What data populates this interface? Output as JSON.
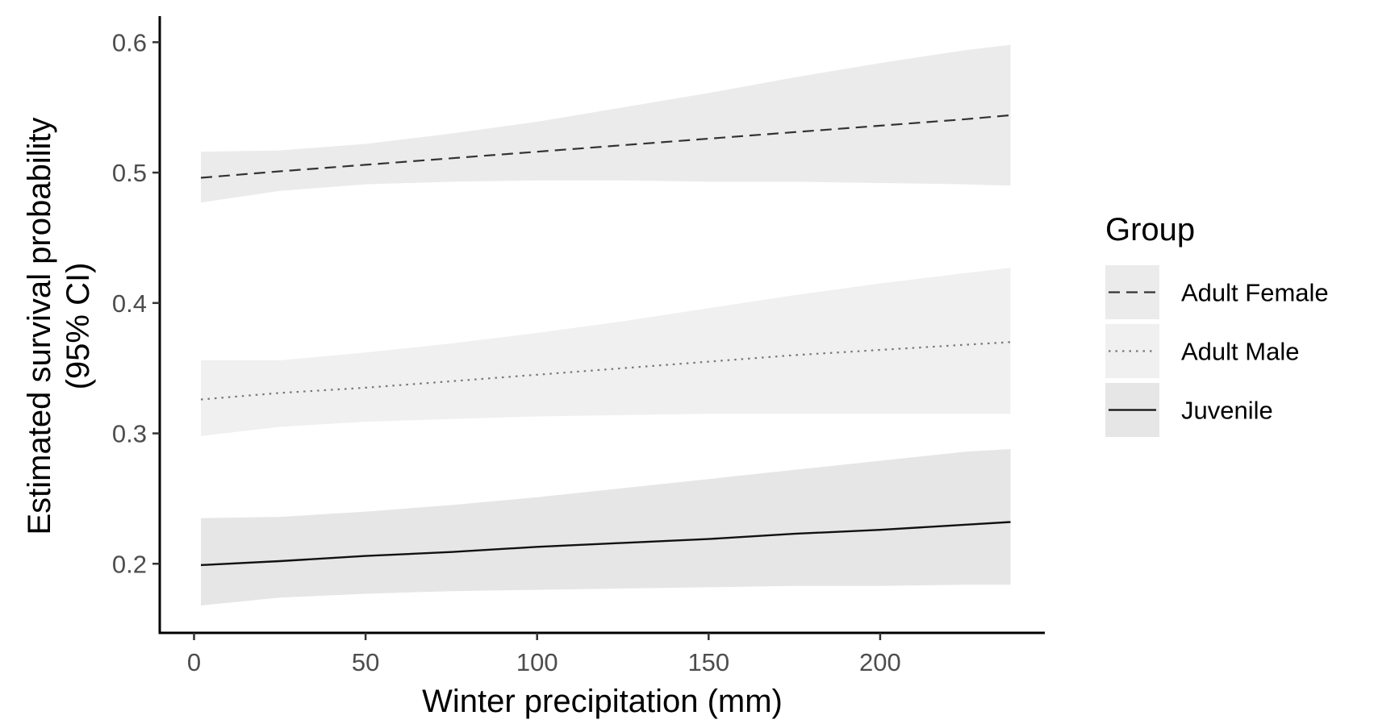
{
  "chart_data": {
    "type": "line",
    "xlabel": "Winter precipitation (mm)",
    "ylabel_lines": [
      "Estimated survival probability",
      "(95% CI)"
    ],
    "xlim": [
      -10,
      248
    ],
    "ylim": [
      0.147,
      0.62
    ],
    "x_ticks": [
      0,
      50,
      100,
      150,
      200
    ],
    "y_ticks": [
      0.2,
      0.3,
      0.4,
      0.5,
      0.6
    ],
    "x_tick_labels": [
      "0",
      "50",
      "100",
      "150",
      "200"
    ],
    "y_tick_labels": [
      "0.2",
      "0.3",
      "0.4",
      "0.5",
      "0.6"
    ],
    "grid": false,
    "legend": {
      "title": "Group",
      "position": "right"
    },
    "x": [
      2,
      25,
      50,
      75,
      100,
      125,
      150,
      175,
      200,
      225,
      238
    ],
    "series": [
      {
        "name": "Adult Female",
        "line_style": "dashed",
        "line_color": "#333333",
        "ribbon_color": "#ebebeb",
        "values": [
          0.496,
          0.501,
          0.506,
          0.511,
          0.516,
          0.521,
          0.526,
          0.531,
          0.536,
          0.541,
          0.544
        ],
        "lower": [
          0.477,
          0.486,
          0.491,
          0.493,
          0.494,
          0.494,
          0.493,
          0.493,
          0.492,
          0.491,
          0.49
        ],
        "upper": [
          0.516,
          0.517,
          0.522,
          0.53,
          0.539,
          0.55,
          0.561,
          0.573,
          0.584,
          0.594,
          0.598
        ]
      },
      {
        "name": "Adult Male",
        "line_style": "dotted",
        "line_color": "#777777",
        "ribbon_color": "#f0f0f0",
        "values": [
          0.326,
          0.331,
          0.335,
          0.34,
          0.345,
          0.35,
          0.355,
          0.36,
          0.364,
          0.368,
          0.37
        ],
        "lower": [
          0.298,
          0.305,
          0.309,
          0.311,
          0.313,
          0.314,
          0.315,
          0.315,
          0.315,
          0.315,
          0.315
        ],
        "upper": [
          0.356,
          0.356,
          0.362,
          0.369,
          0.377,
          0.386,
          0.396,
          0.406,
          0.415,
          0.423,
          0.427
        ]
      },
      {
        "name": "Juvenile",
        "line_style": "solid",
        "line_color": "#111111",
        "ribbon_color": "#e6e6e6",
        "values": [
          0.199,
          0.202,
          0.206,
          0.209,
          0.213,
          0.216,
          0.219,
          0.223,
          0.226,
          0.23,
          0.232
        ],
        "lower": [
          0.168,
          0.174,
          0.177,
          0.179,
          0.18,
          0.181,
          0.182,
          0.183,
          0.183,
          0.184,
          0.184
        ],
        "upper": [
          0.235,
          0.236,
          0.24,
          0.245,
          0.251,
          0.258,
          0.265,
          0.272,
          0.279,
          0.286,
          0.288
        ]
      }
    ]
  }
}
